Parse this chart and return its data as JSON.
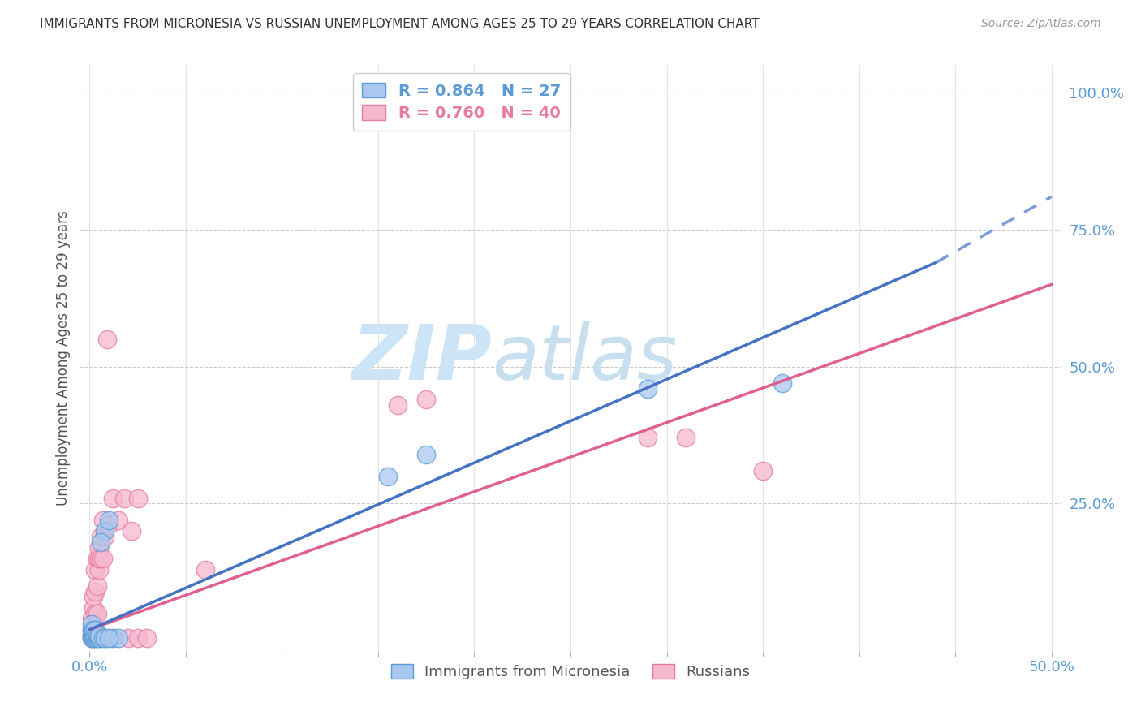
{
  "title": "IMMIGRANTS FROM MICRONESIA VS RUSSIAN UNEMPLOYMENT AMONG AGES 25 TO 29 YEARS CORRELATION CHART",
  "source": "Source: ZipAtlas.com",
  "ylabel": "Unemployment Among Ages 25 to 29 years",
  "xlim": [
    0.0,
    0.5
  ],
  "ylim": [
    0.0,
    1.0
  ],
  "xtick_positions": [
    0.0,
    0.05,
    0.1,
    0.15,
    0.2,
    0.25,
    0.3,
    0.35,
    0.4,
    0.45,
    0.5
  ],
  "xticklabels_show": {
    "0": "0.0%",
    "10": "50.0%"
  },
  "yticks_right": [
    0.25,
    0.5,
    0.75,
    1.0
  ],
  "yticklabels_right": [
    "25.0%",
    "50.0%",
    "75.0%",
    "100.0%"
  ],
  "blue_R": "0.864",
  "blue_N": "27",
  "pink_R": "0.760",
  "pink_N": "40",
  "blue_color": "#a8c8f0",
  "pink_color": "#f5b8ce",
  "blue_edge": "#5B9BD5",
  "pink_edge": "#E87A9F",
  "blue_line_color": "#4472C4",
  "pink_line_color": "#E06090",
  "blue_scatter": [
    [
      0.001,
      0.005
    ],
    [
      0.001,
      0.01
    ],
    [
      0.001,
      0.02
    ],
    [
      0.001,
      0.03
    ],
    [
      0.002,
      0.005
    ],
    [
      0.002,
      0.01
    ],
    [
      0.002,
      0.015
    ],
    [
      0.002,
      0.02
    ],
    [
      0.003,
      0.005
    ],
    [
      0.003,
      0.01
    ],
    [
      0.003,
      0.02
    ],
    [
      0.004,
      0.005
    ],
    [
      0.004,
      0.01
    ],
    [
      0.005,
      0.005
    ],
    [
      0.005,
      0.01
    ],
    [
      0.007,
      0.005
    ],
    [
      0.008,
      0.005
    ],
    [
      0.008,
      0.2
    ],
    [
      0.01,
      0.22
    ],
    [
      0.012,
      0.005
    ],
    [
      0.015,
      0.005
    ],
    [
      0.006,
      0.18
    ],
    [
      0.01,
      0.005
    ],
    [
      0.155,
      0.3
    ],
    [
      0.175,
      0.34
    ],
    [
      0.29,
      0.46
    ],
    [
      0.36,
      0.47
    ]
  ],
  "pink_scatter": [
    [
      0.001,
      0.005
    ],
    [
      0.001,
      0.01
    ],
    [
      0.001,
      0.02
    ],
    [
      0.001,
      0.04
    ],
    [
      0.002,
      0.005
    ],
    [
      0.002,
      0.01
    ],
    [
      0.002,
      0.02
    ],
    [
      0.002,
      0.06
    ],
    [
      0.002,
      0.08
    ],
    [
      0.003,
      0.01
    ],
    [
      0.003,
      0.05
    ],
    [
      0.003,
      0.09
    ],
    [
      0.003,
      0.13
    ],
    [
      0.004,
      0.05
    ],
    [
      0.004,
      0.1
    ],
    [
      0.004,
      0.15
    ],
    [
      0.005,
      0.13
    ],
    [
      0.005,
      0.15
    ],
    [
      0.005,
      0.17
    ],
    [
      0.006,
      0.15
    ],
    [
      0.006,
      0.19
    ],
    [
      0.007,
      0.15
    ],
    [
      0.007,
      0.22
    ],
    [
      0.008,
      0.19
    ],
    [
      0.009,
      0.55
    ],
    [
      0.01,
      0.21
    ],
    [
      0.012,
      0.26
    ],
    [
      0.015,
      0.22
    ],
    [
      0.018,
      0.26
    ],
    [
      0.02,
      0.005
    ],
    [
      0.025,
      0.005
    ],
    [
      0.022,
      0.2
    ],
    [
      0.025,
      0.26
    ],
    [
      0.06,
      0.13
    ],
    [
      0.16,
      0.43
    ],
    [
      0.175,
      0.44
    ],
    [
      0.29,
      0.37
    ],
    [
      0.31,
      0.37
    ],
    [
      0.35,
      0.31
    ],
    [
      0.03,
      0.005
    ]
  ],
  "watermark_zip": "ZIP",
  "watermark_atlas": "atlas",
  "watermark_color": "#cce4f5",
  "background_color": "#ffffff",
  "grid_color": "#cccccc",
  "grid_style": "--"
}
